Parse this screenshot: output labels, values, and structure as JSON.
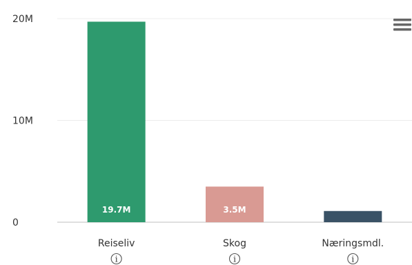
{
  "chart_data": {
    "type": "bar",
    "categories": [
      "Reiseliv",
      "Skog",
      "Næringsmdl."
    ],
    "values": [
      19700000,
      3500000,
      1100000
    ],
    "data_labels": [
      "19.7M",
      "3.5M",
      ""
    ],
    "colors": [
      "#2e9a6e",
      "#d99a93",
      "#3a5266"
    ],
    "ylim": [
      0,
      20000000
    ],
    "y_ticks": [
      {
        "value": 0,
        "label": "0"
      },
      {
        "value": 10000000,
        "label": "10M"
      },
      {
        "value": 20000000,
        "label": "20M"
      }
    ],
    "grid": true,
    "title": "",
    "xlabel": "",
    "ylabel": ""
  },
  "ui": {
    "info_icon_glyph": "i",
    "menu_icon": "hamburger-icon"
  }
}
